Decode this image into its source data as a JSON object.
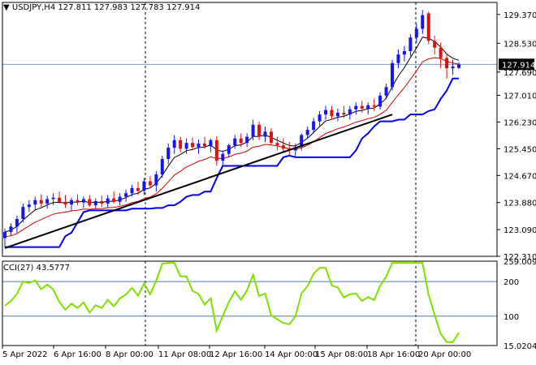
{
  "header": {
    "symbol": "USDJPY,H4",
    "ohlc": "127.811 127.983 127.783 127.914"
  },
  "cci_header": "CCI(27) 43.5777",
  "colors": {
    "bull": "#1515f0",
    "bear": "#e01010",
    "ma_dark": "#000000",
    "ma_red": "#d10000",
    "ma_blue": "#0000ee",
    "trendline": "#000000",
    "cci": "#7fe000",
    "level": "#4d7aa8",
    "grid": "#000000",
    "price_bg": "#000000",
    "price_fg": "#ffffff"
  },
  "chart_data": [
    {
      "type": "candlestick",
      "title": "USDJPY,H4",
      "ylim": [
        122.31,
        129.65
      ],
      "y_ticks": [
        "129.370",
        "128.530",
        "127.690",
        "127.010",
        "126.230",
        "125.450",
        "124.670",
        "123.880",
        "123.090",
        "122.310"
      ],
      "current_price": "127.914",
      "x_labels": [
        "5 Apr 2022",
        "6 Apr 16:00",
        "8 Apr 00:00",
        "11 Apr 08:00",
        "12 Apr 16:00",
        "14 Apr 00:00",
        "15 Apr 08:00",
        "18 Apr 16:00",
        "20 Apr 00:00"
      ],
      "candles": [
        [
          122.84,
          123.12,
          122.58,
          123.02
        ],
        [
          123.02,
          123.28,
          122.9,
          123.18
        ],
        [
          123.18,
          123.5,
          123.0,
          123.4
        ],
        [
          123.4,
          123.85,
          123.3,
          123.75
        ],
        [
          123.75,
          123.95,
          123.6,
          123.82
        ],
        [
          123.82,
          124.05,
          123.65,
          123.95
        ],
        [
          123.95,
          124.12,
          123.75,
          123.85
        ],
        [
          123.85,
          124.08,
          123.7,
          123.98
        ],
        [
          123.98,
          124.15,
          123.8,
          124.02
        ],
        [
          124.02,
          124.2,
          123.85,
          123.9
        ],
        [
          123.9,
          124.1,
          123.72,
          123.82
        ],
        [
          123.82,
          124.02,
          123.65,
          123.95
        ],
        [
          123.95,
          124.12,
          123.8,
          123.88
        ],
        [
          123.88,
          124.06,
          123.72,
          123.98
        ],
        [
          123.98,
          124.1,
          123.76,
          123.8
        ],
        [
          123.8,
          124.0,
          123.7,
          123.92
        ],
        [
          123.92,
          124.08,
          123.75,
          123.85
        ],
        [
          123.85,
          124.1,
          123.72,
          124.0
        ],
        [
          124.0,
          124.2,
          123.85,
          123.9
        ],
        [
          123.9,
          124.15,
          123.8,
          124.05
        ],
        [
          124.05,
          124.25,
          123.9,
          124.15
        ],
        [
          124.15,
          124.4,
          124.05,
          124.3
        ],
        [
          124.3,
          124.48,
          124.1,
          124.22
        ],
        [
          124.22,
          124.6,
          124.1,
          124.5
        ],
        [
          124.5,
          124.65,
          124.3,
          124.38
        ],
        [
          124.38,
          124.8,
          124.2,
          124.7
        ],
        [
          124.7,
          125.25,
          124.6,
          125.15
        ],
        [
          125.15,
          125.6,
          125.0,
          125.48
        ],
        [
          125.48,
          125.85,
          125.3,
          125.7
        ],
        [
          125.7,
          125.8,
          125.35,
          125.45
        ],
        [
          125.45,
          125.75,
          125.3,
          125.62
        ],
        [
          125.62,
          125.78,
          125.4,
          125.5
        ],
        [
          125.5,
          125.72,
          125.3,
          125.6
        ],
        [
          125.6,
          125.8,
          125.45,
          125.52
        ],
        [
          125.52,
          125.75,
          125.35,
          125.7
        ],
        [
          125.7,
          125.82,
          124.95,
          125.1
        ],
        [
          125.1,
          125.4,
          124.95,
          125.3
        ],
        [
          125.3,
          125.6,
          125.2,
          125.55
        ],
        [
          125.55,
          125.85,
          125.45,
          125.75
        ],
        [
          125.75,
          125.9,
          125.5,
          125.62
        ],
        [
          125.62,
          125.9,
          125.5,
          125.8
        ],
        [
          125.8,
          126.3,
          125.7,
          126.15
        ],
        [
          126.15,
          126.25,
          125.7,
          125.8
        ],
        [
          125.8,
          126.1,
          125.65,
          125.95
        ],
        [
          125.95,
          126.05,
          125.55,
          125.62
        ],
        [
          125.62,
          125.8,
          125.4,
          125.55
        ],
        [
          125.55,
          125.75,
          125.35,
          125.45
        ],
        [
          125.45,
          125.65,
          125.25,
          125.4
        ],
        [
          125.4,
          125.6,
          125.2,
          125.5
        ],
        [
          125.5,
          125.9,
          125.4,
          125.85
        ],
        [
          125.85,
          126.1,
          125.75,
          126.0
        ],
        [
          126.0,
          126.35,
          125.9,
          126.25
        ],
        [
          126.25,
          126.55,
          126.1,
          126.45
        ],
        [
          126.45,
          126.7,
          126.3,
          126.58
        ],
        [
          126.58,
          126.7,
          126.3,
          126.4
        ],
        [
          126.4,
          126.62,
          126.25,
          126.5
        ],
        [
          126.5,
          126.7,
          126.35,
          126.45
        ],
        [
          126.45,
          126.7,
          126.3,
          126.6
        ],
        [
          126.6,
          126.8,
          126.45,
          126.7
        ],
        [
          126.7,
          126.85,
          126.5,
          126.62
        ],
        [
          126.62,
          126.8,
          126.45,
          126.72
        ],
        [
          126.72,
          126.9,
          126.55,
          126.68
        ],
        [
          126.68,
          127.1,
          126.6,
          127.0
        ],
        [
          127.0,
          127.35,
          126.9,
          127.25
        ],
        [
          127.25,
          128.05,
          127.15,
          127.95
        ],
        [
          127.95,
          128.35,
          127.8,
          128.2
        ],
        [
          128.2,
          128.45,
          128.0,
          128.3
        ],
        [
          128.3,
          128.8,
          128.15,
          128.7
        ],
        [
          128.7,
          129.1,
          128.55,
          128.95
        ],
        [
          128.95,
          129.5,
          128.8,
          129.35
        ],
        [
          129.4,
          129.45,
          128.5,
          128.6
        ],
        [
          128.6,
          128.75,
          128.2,
          128.4
        ],
        [
          128.4,
          128.55,
          127.8,
          128.1
        ],
        [
          128.1,
          128.2,
          127.5,
          127.8
        ],
        [
          127.8,
          128.05,
          127.6,
          127.85
        ],
        [
          127.81,
          127.98,
          127.78,
          127.91
        ]
      ]
    },
    {
      "type": "line",
      "title": "CCI(27) 43.5777",
      "ylim": [
        15.0204,
        259.0094
      ],
      "y_ticks": [
        "259.0094",
        "200",
        "100",
        "15.0204"
      ],
      "levels": [
        200,
        100
      ]
    }
  ]
}
